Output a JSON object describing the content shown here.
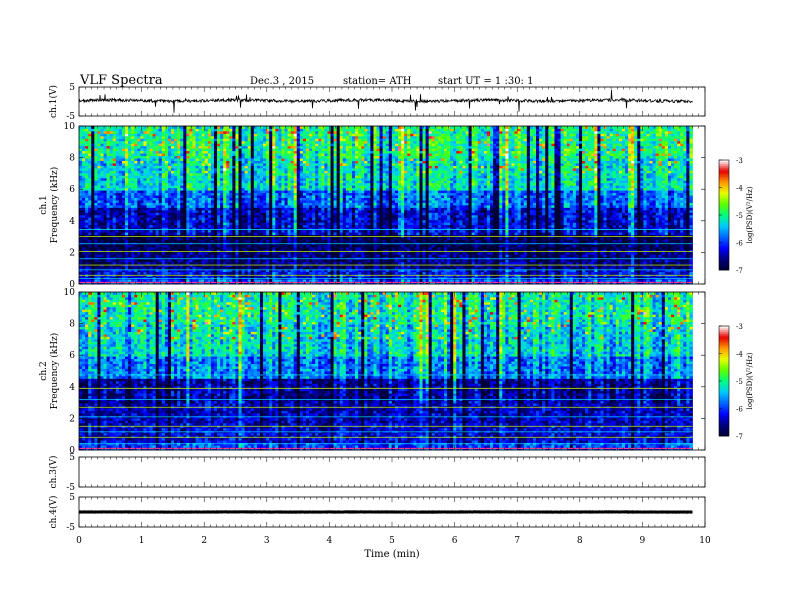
{
  "header": {
    "title": "VLF  Spectra",
    "date": "Dec.3  , 2015",
    "station": "station= ATH",
    "start": "start  UT  =   1  :30: 1"
  },
  "colors": {
    "background": "#ffffff",
    "axis": "#000000",
    "colormap": [
      "#000033",
      "#00007a",
      "#0000ff",
      "#0066ff",
      "#00c8ff",
      "#00ff80",
      "#5aff00",
      "#e6ff00",
      "#ff9900",
      "#e60000",
      "#ffffff"
    ]
  },
  "chart_data": [
    {
      "id": "ch1-waveform",
      "type": "line",
      "ylabel": "ch.1(V)",
      "xlim": [
        0,
        10
      ],
      "ylim": [
        -5,
        5
      ],
      "yticks": [
        -5,
        5
      ],
      "data_xrange": [
        0,
        9.8
      ],
      "baseline": 0.3,
      "noise": 0.5,
      "spikes": 0.8
    },
    {
      "id": "ch1-spectrogram",
      "type": "heatmap",
      "ylabel": "ch.1",
      "ylabel2": "Frequency  (kHz)",
      "xlim": [
        0,
        10
      ],
      "ylim": [
        0,
        10
      ],
      "yticks": [
        0,
        2,
        4,
        6,
        8,
        10
      ],
      "data_xrange": [
        0,
        9.8
      ],
      "seed": 17,
      "bands": [
        {
          "from": 0,
          "to": 0.3,
          "level": -5.8
        },
        {
          "from": 0.3,
          "to": 1.0,
          "level": -6.2
        },
        {
          "from": 1.0,
          "to": 2.2,
          "level": -6.6
        },
        {
          "from": 2.2,
          "to": 3.2,
          "level": -6.8
        },
        {
          "from": 3.2,
          "to": 4.8,
          "level": -6.3
        },
        {
          "from": 4.8,
          "to": 6.0,
          "level": -5.8
        },
        {
          "from": 6.0,
          "to": 8.0,
          "level": -5.2
        },
        {
          "from": 8.0,
          "to": 10.0,
          "level": -5.0
        }
      ],
      "lines_khz": [
        0.35,
        0.55,
        0.9,
        1.2,
        1.6,
        2.05,
        2.55,
        3.0,
        3.45
      ],
      "colorbar": {
        "label": "log(PSD)(V²/Hz)",
        "range": [
          -7,
          -3
        ],
        "ticks": [
          -7,
          -6,
          -5,
          -4,
          -3
        ]
      }
    },
    {
      "id": "ch2-spectrogram",
      "type": "heatmap",
      "ylabel": "ch.2",
      "ylabel2": "Frequency  (kHz)",
      "xlim": [
        0,
        10
      ],
      "ylim": [
        0,
        10
      ],
      "yticks": [
        0,
        2,
        4,
        6,
        8,
        10
      ],
      "data_xrange": [
        0,
        9.8
      ],
      "seed": 41,
      "bands": [
        {
          "from": 0,
          "to": 0.4,
          "level": -5.9
        },
        {
          "from": 0.4,
          "to": 1.5,
          "level": -6.3
        },
        {
          "from": 1.5,
          "to": 3.0,
          "level": -6.4
        },
        {
          "from": 3.0,
          "to": 4.6,
          "level": -6.5
        },
        {
          "from": 4.6,
          "to": 6.0,
          "level": -5.7
        },
        {
          "from": 6.0,
          "to": 8.0,
          "level": -5.3
        },
        {
          "from": 8.0,
          "to": 10.0,
          "level": -5.1
        }
      ],
      "lines_khz": [
        0.4,
        0.8,
        1.15,
        1.5,
        2.1,
        2.7,
        3.2,
        3.9,
        4.75
      ],
      "colorbar": {
        "label": "log(PSD)(V²/Hz)",
        "range": [
          -7,
          -3
        ],
        "ticks": [
          -7,
          -6,
          -5,
          -4,
          -3
        ]
      }
    },
    {
      "id": "ch3-waveform",
      "type": "line",
      "ylabel": "ch.3(V)",
      "xlim": [
        0,
        10
      ],
      "ylim": [
        -5,
        5
      ],
      "yticks": [
        -5,
        5
      ],
      "empty": true
    },
    {
      "id": "ch4-waveform",
      "type": "line",
      "ylabel": "ch.4(V)",
      "xlim": [
        0,
        10
      ],
      "ylim": [
        -5,
        5
      ],
      "yticks": [
        -5,
        5
      ],
      "data_xrange": [
        0,
        9.8
      ],
      "baseline": 0.0,
      "noise": 0.05,
      "spikes": 0
    }
  ],
  "xaxis": {
    "label": "Time  (min)",
    "range": [
      0,
      10
    ],
    "ticks": [
      0,
      1,
      2,
      3,
      4,
      5,
      6,
      7,
      8,
      9,
      10
    ]
  }
}
